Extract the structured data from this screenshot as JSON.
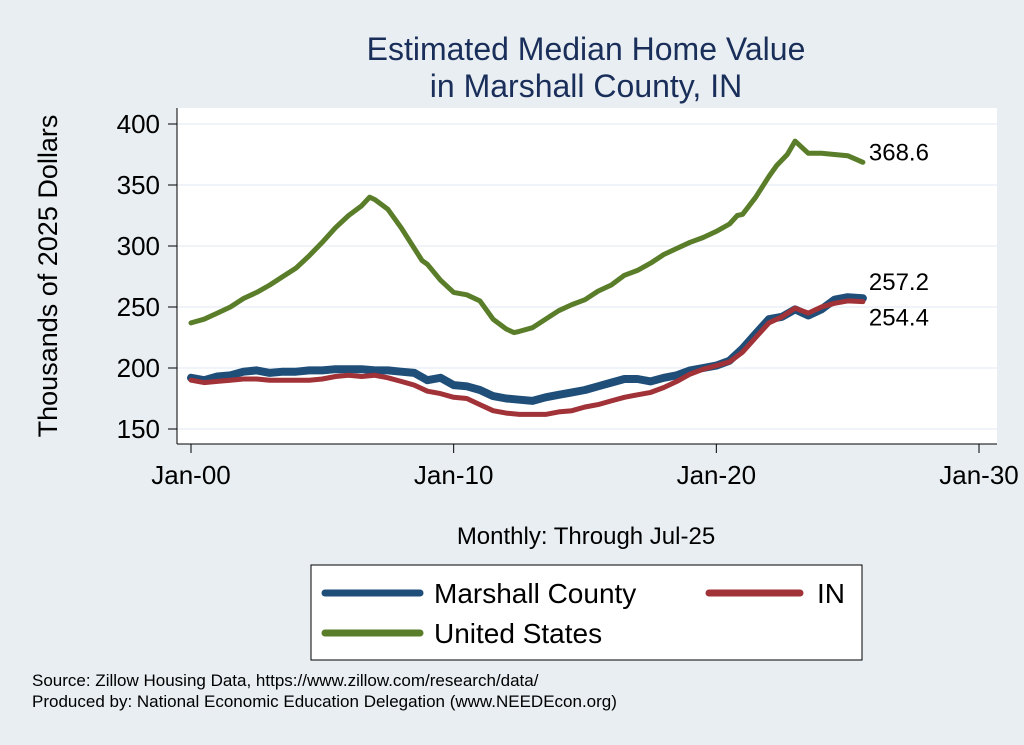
{
  "chart_data": {
    "type": "line",
    "title": [
      "Estimated Median Home Value",
      "in Marshall County, IN"
    ],
    "xlabel": "Monthly: Through Jul-25",
    "ylabel": "Thousands of 2025 Dollars",
    "x_ticks": [
      {
        "label": "Jan-00",
        "year": 2000
      },
      {
        "label": "Jan-10",
        "year": 2010
      },
      {
        "label": "Jan-20",
        "year": 2020
      },
      {
        "label": "Jan-30",
        "year": 2030
      }
    ],
    "y_ticks": [
      150,
      200,
      250,
      300,
      350,
      400
    ],
    "xlim": [
      2000,
      2030
    ],
    "ylim": [
      150,
      400
    ],
    "grid": true,
    "legend_position": "bottom",
    "series": [
      {
        "name": "Marshall County",
        "color": "#1f4e79",
        "end_label": "257.2",
        "points": [
          [
            2000.0,
            192
          ],
          [
            2000.5,
            190
          ],
          [
            2001.0,
            193
          ],
          [
            2001.5,
            194
          ],
          [
            2002.0,
            197
          ],
          [
            2002.5,
            198
          ],
          [
            2003.0,
            196
          ],
          [
            2003.5,
            197
          ],
          [
            2004.0,
            197
          ],
          [
            2004.5,
            198
          ],
          [
            2005.0,
            198
          ],
          [
            2005.5,
            199
          ],
          [
            2006.0,
            199
          ],
          [
            2006.5,
            199
          ],
          [
            2007.0,
            198
          ],
          [
            2007.5,
            198
          ],
          [
            2008.0,
            197
          ],
          [
            2008.5,
            196
          ],
          [
            2009.0,
            190
          ],
          [
            2009.5,
            192
          ],
          [
            2010.0,
            186
          ],
          [
            2010.5,
            185
          ],
          [
            2011.0,
            182
          ],
          [
            2011.5,
            177
          ],
          [
            2012.0,
            175
          ],
          [
            2012.5,
            174
          ],
          [
            2013.0,
            173
          ],
          [
            2013.5,
            176
          ],
          [
            2014.0,
            178
          ],
          [
            2014.5,
            180
          ],
          [
            2015.0,
            182
          ],
          [
            2015.5,
            185
          ],
          [
            2016.0,
            188
          ],
          [
            2016.5,
            191
          ],
          [
            2017.0,
            191
          ],
          [
            2017.5,
            189
          ],
          [
            2018.0,
            192
          ],
          [
            2018.5,
            194
          ],
          [
            2019.0,
            198
          ],
          [
            2019.5,
            200
          ],
          [
            2020.0,
            202
          ],
          [
            2020.5,
            206
          ],
          [
            2021.0,
            216
          ],
          [
            2021.5,
            228
          ],
          [
            2022.0,
            240
          ],
          [
            2022.5,
            242
          ],
          [
            2023.0,
            248
          ],
          [
            2023.5,
            243
          ],
          [
            2024.0,
            248
          ],
          [
            2024.5,
            256
          ],
          [
            2025.0,
            258
          ],
          [
            2025.58,
            257.2
          ]
        ]
      },
      {
        "name": "IN",
        "color": "#a03238",
        "end_label": "254.4",
        "points": [
          [
            2000.0,
            190
          ],
          [
            2000.5,
            188
          ],
          [
            2001.0,
            189
          ],
          [
            2001.5,
            190
          ],
          [
            2002.0,
            191
          ],
          [
            2002.5,
            191
          ],
          [
            2003.0,
            190
          ],
          [
            2003.5,
            190
          ],
          [
            2004.0,
            190
          ],
          [
            2004.5,
            190
          ],
          [
            2005.0,
            191
          ],
          [
            2005.5,
            193
          ],
          [
            2006.0,
            194
          ],
          [
            2006.5,
            193
          ],
          [
            2007.0,
            194
          ],
          [
            2007.5,
            192
          ],
          [
            2008.0,
            189
          ],
          [
            2008.5,
            186
          ],
          [
            2009.0,
            181
          ],
          [
            2009.5,
            179
          ],
          [
            2010.0,
            176
          ],
          [
            2010.5,
            175
          ],
          [
            2011.0,
            170
          ],
          [
            2011.5,
            165
          ],
          [
            2012.0,
            163
          ],
          [
            2012.5,
            162
          ],
          [
            2013.0,
            162
          ],
          [
            2013.5,
            162
          ],
          [
            2014.0,
            164
          ],
          [
            2014.5,
            165
          ],
          [
            2015.0,
            168
          ],
          [
            2015.5,
            170
          ],
          [
            2016.0,
            173
          ],
          [
            2016.5,
            176
          ],
          [
            2017.0,
            178
          ],
          [
            2017.5,
            180
          ],
          [
            2018.0,
            184
          ],
          [
            2018.5,
            189
          ],
          [
            2019.0,
            195
          ],
          [
            2019.5,
            199
          ],
          [
            2020.0,
            202
          ],
          [
            2020.5,
            205
          ],
          [
            2021.0,
            213
          ],
          [
            2021.5,
            225
          ],
          [
            2022.0,
            237
          ],
          [
            2022.5,
            242
          ],
          [
            2023.0,
            249
          ],
          [
            2023.5,
            245
          ],
          [
            2024.0,
            250
          ],
          [
            2024.5,
            253
          ],
          [
            2025.0,
            255
          ],
          [
            2025.58,
            254.4
          ]
        ]
      },
      {
        "name": "United States",
        "color": "#5a7d2a",
        "end_label": "368.6",
        "points": [
          [
            2000.0,
            237
          ],
          [
            2000.5,
            240
          ],
          [
            2001.0,
            245
          ],
          [
            2001.5,
            250
          ],
          [
            2002.0,
            257
          ],
          [
            2002.5,
            262
          ],
          [
            2003.0,
            268
          ],
          [
            2003.5,
            275
          ],
          [
            2004.0,
            282
          ],
          [
            2004.5,
            292
          ],
          [
            2005.0,
            303
          ],
          [
            2005.5,
            315
          ],
          [
            2006.0,
            325
          ],
          [
            2006.5,
            333
          ],
          [
            2006.8,
            340
          ],
          [
            2007.0,
            338
          ],
          [
            2007.5,
            330
          ],
          [
            2008.0,
            315
          ],
          [
            2008.5,
            298
          ],
          [
            2008.8,
            288
          ],
          [
            2009.0,
            285
          ],
          [
            2009.5,
            272
          ],
          [
            2010.0,
            262
          ],
          [
            2010.5,
            260
          ],
          [
            2011.0,
            255
          ],
          [
            2011.5,
            240
          ],
          [
            2012.0,
            232
          ],
          [
            2012.3,
            229
          ],
          [
            2012.5,
            230
          ],
          [
            2013.0,
            233
          ],
          [
            2013.5,
            240
          ],
          [
            2014.0,
            247
          ],
          [
            2014.5,
            252
          ],
          [
            2015.0,
            256
          ],
          [
            2015.5,
            263
          ],
          [
            2016.0,
            268
          ],
          [
            2016.5,
            276
          ],
          [
            2017.0,
            280
          ],
          [
            2017.5,
            286
          ],
          [
            2018.0,
            293
          ],
          [
            2018.5,
            298
          ],
          [
            2019.0,
            303
          ],
          [
            2019.5,
            307
          ],
          [
            2020.0,
            312
          ],
          [
            2020.5,
            318
          ],
          [
            2020.8,
            325
          ],
          [
            2021.0,
            326
          ],
          [
            2021.5,
            340
          ],
          [
            2022.0,
            357
          ],
          [
            2022.3,
            366
          ],
          [
            2022.7,
            375
          ],
          [
            2023.0,
            386
          ],
          [
            2023.5,
            376
          ],
          [
            2024.0,
            376
          ],
          [
            2024.5,
            375
          ],
          [
            2025.0,
            374
          ],
          [
            2025.58,
            368.6
          ]
        ]
      }
    ]
  },
  "source_line": "Source: Zillow Housing Data, https://www.zillow.com/research/data/",
  "produced_line": "Produced by: National Economic Education Delegation (www.NEEDEcon.org)"
}
